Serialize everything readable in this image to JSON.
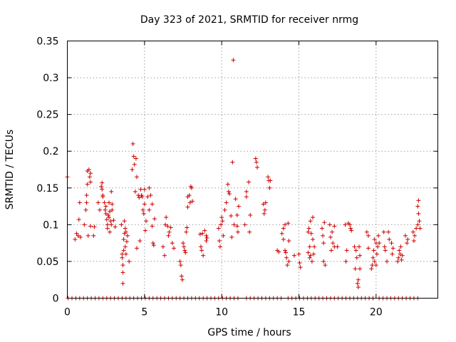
{
  "chart_data": {
    "type": "scatter",
    "title": "Day 323 of 2021, SRMTID for receiver nrmg",
    "xlabel": "GPS time / hours",
    "ylabel": "SRMTID / TECUs",
    "xlim": [
      0,
      24
    ],
    "ylim": [
      0,
      0.35
    ],
    "xticks": [
      0,
      5,
      10,
      15,
      20
    ],
    "yticks": [
      0,
      0.05,
      0.1,
      0.15,
      0.2,
      0.25,
      0.3,
      0.35
    ],
    "ytick_labels": [
      "0",
      "0.05",
      "0.1",
      "0.15",
      "0.2",
      "0.25",
      "0.3",
      "0.35"
    ],
    "grid": true,
    "marker": "+",
    "color": "#cc0000",
    "series": [
      {
        "name": "SRMTID",
        "points": [
          [
            0.0,
            0.165
          ],
          [
            0.5,
            0.08
          ],
          [
            0.6,
            0.088
          ],
          [
            0.7,
            0.085
          ],
          [
            0.75,
            0.107
          ],
          [
            0.8,
            0.13
          ],
          [
            0.85,
            0.083
          ],
          [
            1.1,
            0.1
          ],
          [
            1.2,
            0.12
          ],
          [
            1.25,
            0.13
          ],
          [
            1.25,
            0.14
          ],
          [
            1.3,
            0.155
          ],
          [
            1.3,
            0.173
          ],
          [
            1.35,
            0.085
          ],
          [
            1.4,
            0.175
          ],
          [
            1.45,
            0.165
          ],
          [
            1.5,
            0.17
          ],
          [
            1.5,
            0.158
          ],
          [
            1.5,
            0.098
          ],
          [
            1.7,
            0.085
          ],
          [
            1.75,
            0.097
          ],
          [
            2.0,
            0.13
          ],
          [
            2.1,
            0.12
          ],
          [
            2.2,
            0.152
          ],
          [
            2.25,
            0.157
          ],
          [
            2.25,
            0.148
          ],
          [
            2.3,
            0.14
          ],
          [
            2.3,
            0.138
          ],
          [
            2.4,
            0.13
          ],
          [
            2.45,
            0.12
          ],
          [
            2.5,
            0.115
          ],
          [
            2.5,
            0.125
          ],
          [
            2.55,
            0.107
          ],
          [
            2.6,
            0.1
          ],
          [
            2.6,
            0.095
          ],
          [
            2.65,
            0.113
          ],
          [
            2.7,
            0.13
          ],
          [
            2.7,
            0.11
          ],
          [
            2.75,
            0.09
          ],
          [
            2.75,
            0.118
          ],
          [
            2.8,
            0.105
          ],
          [
            2.85,
            0.145
          ],
          [
            2.85,
            0.1
          ],
          [
            2.9,
            0.12
          ],
          [
            2.9,
            0.128
          ],
          [
            3.0,
            0.106
          ],
          [
            3.1,
            0.097
          ],
          [
            3.5,
            0.1
          ],
          [
            3.55,
            0.06
          ],
          [
            3.55,
            0.055
          ],
          [
            3.6,
            0.045
          ],
          [
            3.6,
            0.035
          ],
          [
            3.6,
            0.02
          ],
          [
            3.65,
            0.065
          ],
          [
            3.65,
            0.08
          ],
          [
            3.7,
            0.105
          ],
          [
            3.7,
            0.088
          ],
          [
            3.75,
            0.07
          ],
          [
            3.75,
            0.095
          ],
          [
            3.8,
            0.09
          ],
          [
            3.8,
            0.06
          ],
          [
            3.85,
            0.077
          ],
          [
            3.9,
            0.085
          ],
          [
            4.0,
            0.05
          ],
          [
            4.2,
            0.175
          ],
          [
            4.25,
            0.21
          ],
          [
            4.3,
            0.193
          ],
          [
            4.35,
            0.182
          ],
          [
            4.4,
            0.145
          ],
          [
            4.45,
            0.19
          ],
          [
            4.5,
            0.165
          ],
          [
            4.5,
            0.068
          ],
          [
            4.6,
            0.14
          ],
          [
            4.65,
            0.137
          ],
          [
            4.7,
            0.078
          ],
          [
            4.75,
            0.148
          ],
          [
            4.8,
            0.14
          ],
          [
            4.85,
            0.138
          ],
          [
            4.9,
            0.12
          ],
          [
            4.95,
            0.115
          ],
          [
            5.0,
            0.148
          ],
          [
            5.0,
            0.128
          ],
          [
            5.05,
            0.092
          ],
          [
            5.1,
            0.105
          ],
          [
            5.2,
            0.138
          ],
          [
            5.3,
            0.12
          ],
          [
            5.3,
            0.15
          ],
          [
            5.4,
            0.14
          ],
          [
            5.5,
            0.128
          ],
          [
            5.5,
            0.098
          ],
          [
            5.55,
            0.075
          ],
          [
            5.6,
            0.072
          ],
          [
            5.65,
            0.108
          ],
          [
            6.2,
            0.07
          ],
          [
            6.3,
            0.058
          ],
          [
            6.35,
            0.1
          ],
          [
            6.4,
            0.11
          ],
          [
            6.5,
            0.098
          ],
          [
            6.55,
            0.085
          ],
          [
            6.6,
            0.09
          ],
          [
            6.7,
            0.096
          ],
          [
            6.8,
            0.075
          ],
          [
            6.9,
            0.068
          ],
          [
            7.3,
            0.05
          ],
          [
            7.35,
            0.045
          ],
          [
            7.4,
            0.03
          ],
          [
            7.45,
            0.025
          ],
          [
            7.5,
            0.075
          ],
          [
            7.55,
            0.07
          ],
          [
            7.6,
            0.065
          ],
          [
            7.65,
            0.062
          ],
          [
            7.7,
            0.09
          ],
          [
            7.75,
            0.096
          ],
          [
            7.8,
            0.124
          ],
          [
            7.8,
            0.138
          ],
          [
            7.9,
            0.14
          ],
          [
            7.95,
            0.13
          ],
          [
            8.0,
            0.152
          ],
          [
            8.05,
            0.15
          ],
          [
            8.1,
            0.132
          ],
          [
            8.6,
            0.087
          ],
          [
            8.65,
            0.07
          ],
          [
            8.7,
            0.065
          ],
          [
            8.75,
            0.088
          ],
          [
            8.8,
            0.058
          ],
          [
            8.9,
            0.092
          ],
          [
            9.0,
            0.085
          ],
          [
            9.0,
            0.078
          ],
          [
            9.05,
            0.082
          ],
          [
            9.8,
            0.095
          ],
          [
            9.85,
            0.078
          ],
          [
            9.9,
            0.07
          ],
          [
            9.95,
            0.1
          ],
          [
            10.0,
            0.11
          ],
          [
            10.05,
            0.105
          ],
          [
            10.1,
            0.085
          ],
          [
            10.2,
            0.12
          ],
          [
            10.3,
            0.13
          ],
          [
            10.4,
            0.155
          ],
          [
            10.45,
            0.145
          ],
          [
            10.5,
            0.142
          ],
          [
            10.6,
            0.112
          ],
          [
            10.65,
            0.083
          ],
          [
            10.7,
            0.185
          ],
          [
            10.75,
            0.324
          ],
          [
            10.8,
            0.1
          ],
          [
            10.9,
            0.135
          ],
          [
            11.0,
            0.113
          ],
          [
            11.0,
            0.098
          ],
          [
            11.05,
            0.09
          ],
          [
            11.1,
            0.125
          ],
          [
            11.5,
            0.1
          ],
          [
            11.6,
            0.138
          ],
          [
            11.6,
            0.145
          ],
          [
            11.75,
            0.158
          ],
          [
            11.8,
            0.09
          ],
          [
            11.85,
            0.113
          ],
          [
            12.2,
            0.19
          ],
          [
            12.25,
            0.185
          ],
          [
            12.3,
            0.178
          ],
          [
            12.7,
            0.128
          ],
          [
            12.75,
            0.115
          ],
          [
            12.8,
            0.12
          ],
          [
            12.85,
            0.13
          ],
          [
            13.0,
            0.165
          ],
          [
            13.05,
            0.16
          ],
          [
            13.1,
            0.15
          ],
          [
            13.15,
            0.16
          ],
          [
            13.6,
            0.065
          ],
          [
            13.7,
            0.063
          ],
          [
            13.9,
            0.088
          ],
          [
            14.0,
            0.095
          ],
          [
            14.0,
            0.08
          ],
          [
            14.1,
            0.065
          ],
          [
            14.1,
            0.1
          ],
          [
            14.15,
            0.062
          ],
          [
            14.2,
            0.055
          ],
          [
            14.25,
            0.045
          ],
          [
            14.3,
            0.102
          ],
          [
            14.35,
            0.078
          ],
          [
            14.35,
            0.05
          ],
          [
            14.7,
            0.058
          ],
          [
            15.0,
            0.06
          ],
          [
            15.05,
            0.048
          ],
          [
            15.1,
            0.042
          ],
          [
            15.6,
            0.09
          ],
          [
            15.6,
            0.062
          ],
          [
            15.65,
            0.095
          ],
          [
            15.7,
            0.07
          ],
          [
            15.7,
            0.055
          ],
          [
            15.75,
            0.105
          ],
          [
            15.75,
            0.058
          ],
          [
            15.8,
            0.088
          ],
          [
            15.85,
            0.05
          ],
          [
            15.9,
            0.08
          ],
          [
            15.9,
            0.11
          ],
          [
            15.95,
            0.06
          ],
          [
            16.0,
            0.07
          ],
          [
            16.5,
            0.095
          ],
          [
            16.55,
            0.085
          ],
          [
            16.6,
            0.075
          ],
          [
            16.6,
            0.05
          ],
          [
            16.65,
            0.103
          ],
          [
            16.7,
            0.045
          ],
          [
            17.0,
            0.1
          ],
          [
            17.05,
            0.083
          ],
          [
            17.1,
            0.065
          ],
          [
            17.15,
            0.09
          ],
          [
            17.2,
            0.075
          ],
          [
            17.3,
            0.098
          ],
          [
            17.3,
            0.07
          ],
          [
            17.5,
            0.07
          ],
          [
            18.0,
            0.1
          ],
          [
            18.05,
            0.05
          ],
          [
            18.1,
            0.065
          ],
          [
            18.2,
            0.102
          ],
          [
            18.3,
            0.1
          ],
          [
            18.35,
            0.095
          ],
          [
            18.4,
            0.092
          ],
          [
            18.6,
            0.07
          ],
          [
            18.65,
            0.04
          ],
          [
            18.7,
            0.065
          ],
          [
            18.75,
            0.055
          ],
          [
            18.8,
            0.02
          ],
          [
            18.85,
            0.015
          ],
          [
            18.85,
            0.025
          ],
          [
            18.9,
            0.07
          ],
          [
            18.95,
            0.04
          ],
          [
            18.95,
            0.058
          ],
          [
            19.4,
            0.09
          ],
          [
            19.5,
            0.085
          ],
          [
            19.5,
            0.068
          ],
          [
            19.7,
            0.04
          ],
          [
            19.75,
            0.045
          ],
          [
            19.8,
            0.055
          ],
          [
            19.85,
            0.065
          ],
          [
            19.9,
            0.05
          ],
          [
            19.9,
            0.08
          ],
          [
            20.0,
            0.075
          ],
          [
            20.0,
            0.045
          ],
          [
            20.05,
            0.06
          ],
          [
            20.1,
            0.07
          ],
          [
            20.15,
            0.085
          ],
          [
            20.2,
            0.075
          ],
          [
            20.5,
            0.09
          ],
          [
            20.55,
            0.07
          ],
          [
            20.6,
            0.065
          ],
          [
            20.7,
            0.05
          ],
          [
            20.8,
            0.09
          ],
          [
            20.85,
            0.08
          ],
          [
            21.0,
            0.075
          ],
          [
            21.05,
            0.06
          ],
          [
            21.1,
            0.068
          ],
          [
            21.4,
            0.05
          ],
          [
            21.45,
            0.055
          ],
          [
            21.5,
            0.065
          ],
          [
            21.55,
            0.06
          ],
          [
            21.6,
            0.07
          ],
          [
            21.65,
            0.052
          ],
          [
            21.7,
            0.058
          ],
          [
            21.9,
            0.085
          ],
          [
            22.0,
            0.075
          ],
          [
            22.05,
            0.08
          ],
          [
            22.4,
            0.09
          ],
          [
            22.45,
            0.078
          ],
          [
            22.5,
            0.085
          ],
          [
            22.6,
            0.095
          ],
          [
            22.7,
            0.1
          ],
          [
            22.7,
            0.125
          ],
          [
            22.75,
            0.133
          ],
          [
            22.75,
            0.115
          ],
          [
            22.8,
            0.105
          ],
          [
            22.85,
            0.095
          ]
        ]
      }
    ],
    "zero_segments": [
      [
        0.05,
        11.1
      ],
      [
        11.6,
        14.05
      ],
      [
        14.3,
        19.85
      ],
      [
        20.2,
        22.85
      ]
    ],
    "zero_spacing": 0.25
  }
}
